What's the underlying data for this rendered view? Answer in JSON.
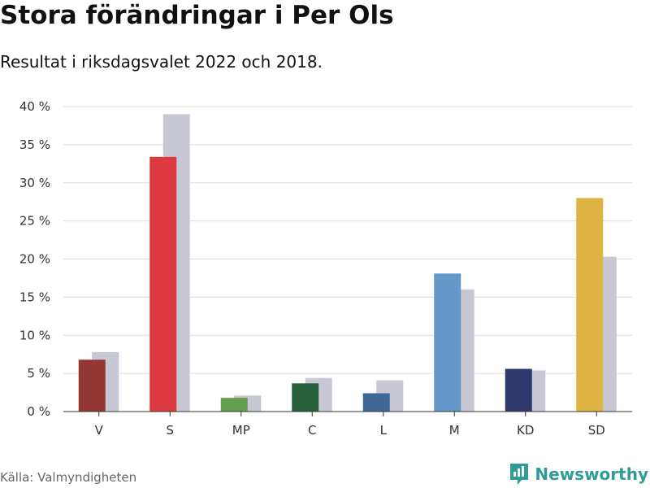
{
  "header": {
    "title": "Stora förändringar i Per Ols",
    "subtitle": "Resultat i riksdagsvalet 2022 och 2018."
  },
  "footer": {
    "source": "Källa: Valmyndigheten",
    "brand": "Newsworthy",
    "brand_icon": "newsworthy-logo-icon",
    "brand_color": "#2f9c95"
  },
  "chart_data": {
    "type": "bar",
    "title": "Stora förändringar i Per Ols",
    "subtitle": "Resultat i riksdagsvalet 2022 och 2018.",
    "categories": [
      "V",
      "S",
      "MP",
      "C",
      "L",
      "M",
      "KD",
      "SD"
    ],
    "series": [
      {
        "values": [
          6.8,
          33.4,
          1.8,
          3.7,
          2.4,
          18.1,
          5.6,
          28.0
        ],
        "colors": [
          "#933634",
          "#dc3a3e",
          "#61a050",
          "#25603a",
          "#3f6897",
          "#6398c8",
          "#30396e",
          "#dfb244"
        ]
      },
      {
        "values": [
          7.8,
          39.0,
          2.1,
          4.4,
          4.1,
          16.0,
          5.4,
          20.3
        ],
        "color": "#c8c8d5"
      }
    ],
    "yticks": [
      "0 %",
      "5 %",
      "10 %",
      "15 %",
      "20 %",
      "25 %",
      "30 %",
      "35 %",
      "40 %"
    ],
    "ylim": [
      0,
      40
    ],
    "grid": true,
    "legend": "none",
    "xlabel": "",
    "ylabel": ""
  }
}
